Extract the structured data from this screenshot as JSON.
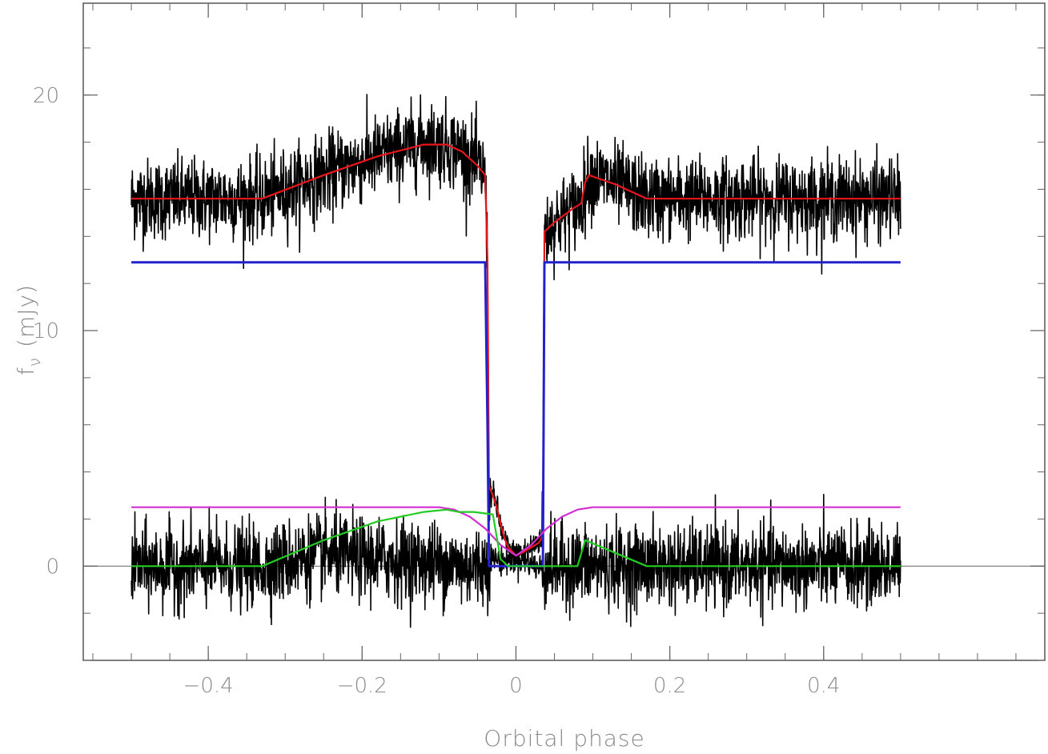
{
  "chart_data": {
    "type": "line",
    "title": "",
    "xlabel": "Orbital phase",
    "ylabel_main": "f",
    "ylabel_sub": "ν",
    "ylabel_unit": "(mJy)",
    "xlim": [
      -0.5625,
      0.6875
    ],
    "ylim": [
      -4.0,
      23.9
    ],
    "xticks": [
      {
        "value": -0.4,
        "label": "−0.4"
      },
      {
        "value": -0.2,
        "label": "−0.2"
      },
      {
        "value": 0,
        "label": "0"
      },
      {
        "value": 0.2,
        "label": "0.2"
      },
      {
        "value": 0.4,
        "label": "0.4"
      }
    ],
    "yticks": [
      {
        "value": 0,
        "label": "0"
      },
      {
        "value": 10,
        "label": "10"
      },
      {
        "value": 20,
        "label": "20"
      }
    ],
    "x_minor_step": 0.05,
    "y_minor_step": 2,
    "zero_line": 0,
    "noisy_series": [
      {
        "name": "",
        "color": "#000000",
        "noise_sigma": 0.85,
        "x": [
          -0.5,
          -0.33,
          -0.25,
          -0.18,
          -0.12,
          -0.09,
          -0.07,
          -0.05,
          -0.04,
          -0.037,
          -0.035,
          -0.03,
          -0.025,
          -0.02,
          -0.015,
          -0.01,
          0,
          0.01,
          0.02,
          0.03,
          0.035,
          0.037,
          0.05,
          0.075,
          0.085,
          0.095,
          0.13,
          0.17,
          0.3,
          0.5
        ],
        "y": [
          15.6,
          15.6,
          16.6,
          17.4,
          18.0,
          17.9,
          17.6,
          17.0,
          16.6,
          13.0,
          3.4,
          3.0,
          2.5,
          1.7,
          1.1,
          0.7,
          0.45,
          0.6,
          0.8,
          1.1,
          1.4,
          14.2,
          14.6,
          15.2,
          15.4,
          16.6,
          16.2,
          15.6,
          15.6,
          15.6
        ]
      },
      {
        "name": "",
        "color": "#000000",
        "noise_sigma": 0.85,
        "x": [
          -0.5,
          -0.33,
          -0.25,
          -0.18,
          -0.12,
          -0.09,
          -0.07,
          -0.05,
          -0.04,
          -0.037,
          -0.035,
          -0.03,
          -0.025,
          -0.02,
          -0.015,
          -0.01,
          0,
          0.01,
          0.02,
          0.03,
          0.035,
          0.037,
          0.05,
          0.075,
          0.085,
          0.095,
          0.13,
          0.17,
          0.3,
          0.5
        ],
        "y": [
          0.0,
          0.0,
          0.5,
          0.3,
          0.2,
          0.1,
          0.0,
          0.0,
          0.0,
          0.0,
          0.4,
          0.3,
          0.3,
          0.2,
          0.2,
          0.3,
          0.3,
          0.3,
          0.1,
          -0.1,
          0.0,
          0.0,
          0.0,
          0.0,
          0.0,
          0.0,
          0.0,
          0.0,
          0.0,
          0.0
        ]
      }
    ],
    "series": [
      {
        "name": "",
        "color": "#e8161b",
        "x": [
          -0.5,
          -0.33,
          -0.25,
          -0.18,
          -0.12,
          -0.09,
          -0.07,
          -0.05,
          -0.04,
          -0.037,
          -0.035,
          -0.03,
          -0.025,
          -0.02,
          -0.015,
          -0.01,
          0,
          0.01,
          0.02,
          0.03,
          0.035,
          0.037,
          0.05,
          0.075,
          0.085,
          0.09,
          0.095,
          0.13,
          0.17,
          0.3,
          0.5
        ],
        "y": [
          15.6,
          15.6,
          16.6,
          17.4,
          17.9,
          17.9,
          17.6,
          17.0,
          16.6,
          13.0,
          3.4,
          3.0,
          2.5,
          1.8,
          1.2,
          0.8,
          0.45,
          0.6,
          0.8,
          1.0,
          1.3,
          14.2,
          14.6,
          15.2,
          15.4,
          16.3,
          16.6,
          16.2,
          15.6,
          15.6,
          15.6
        ]
      },
      {
        "name": "",
        "color": "#2222cc",
        "x": [
          -0.5,
          -0.04,
          -0.037,
          -0.035,
          0.035,
          0.037,
          0.5
        ],
        "y": [
          12.9,
          12.9,
          6.0,
          0.0,
          0.0,
          12.9,
          12.9
        ]
      },
      {
        "name": "",
        "color": "#d42fd4",
        "x": [
          -0.5,
          -0.1,
          -0.08,
          -0.06,
          -0.04,
          -0.02,
          0,
          0.02,
          0.04,
          0.06,
          0.08,
          0.1,
          0.5
        ],
        "y": [
          2.5,
          2.5,
          2.4,
          2.1,
          1.6,
          0.9,
          0.45,
          0.9,
          1.6,
          2.1,
          2.4,
          2.5,
          2.5
        ]
      },
      {
        "name": "",
        "color": "#22cc22",
        "x": [
          -0.5,
          -0.33,
          -0.25,
          -0.18,
          -0.12,
          -0.09,
          -0.075,
          -0.055,
          -0.03,
          -0.02,
          -0.01,
          0.08,
          0.09,
          0.17,
          0.5
        ],
        "y": [
          0.0,
          0.0,
          1.1,
          1.9,
          2.3,
          2.4,
          2.3,
          2.3,
          2.2,
          0.3,
          0.0,
          0.0,
          1.1,
          0.0,
          0.0
        ]
      }
    ]
  }
}
